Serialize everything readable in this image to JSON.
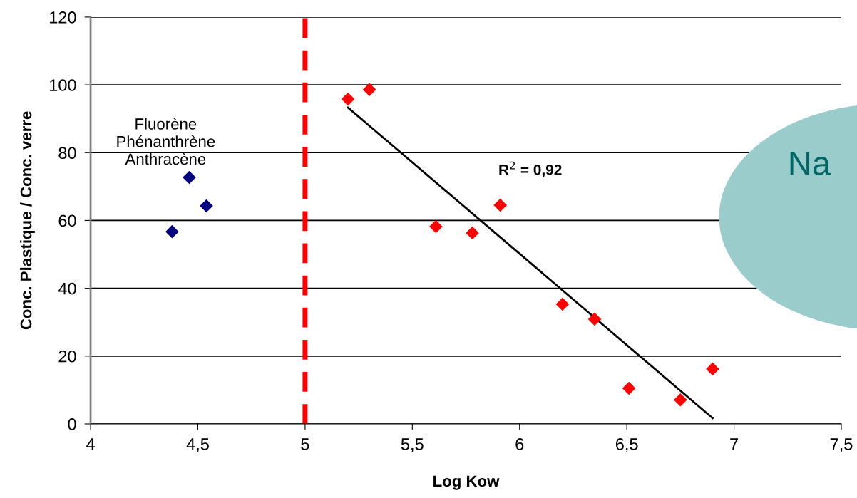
{
  "chart_data": {
    "type": "scatter",
    "xlabel": "Log Kow",
    "ylabel": "Conc. Plastique / Conc. verre",
    "xlim": [
      4,
      7.5
    ],
    "ylim": [
      0,
      120
    ],
    "xticks": [
      4,
      {
        "value": 4.5,
        "label": "4,5"
      },
      5,
      {
        "value": 5.5,
        "label": "5,5"
      },
      6,
      {
        "value": 6.5,
        "label": "6,5"
      },
      7,
      {
        "value": 7.5,
        "label": "7,5"
      }
    ],
    "yticks": [
      0,
      20,
      40,
      60,
      80,
      100,
      120
    ],
    "grid": "y",
    "marker": "diamond",
    "series": [
      {
        "color": "#000080",
        "x": [
          4.38,
          4.46,
          4.54
        ],
        "values": [
          56.7,
          72.7,
          64.3
        ]
      },
      {
        "color": "#ff0000",
        "x": [
          5.2,
          5.3,
          5.61,
          5.78,
          5.91,
          6.2,
          6.35,
          6.51,
          6.75,
          6.9
        ],
        "values": [
          95.8,
          98.6,
          58.2,
          56.3,
          64.5,
          35.3,
          30.9,
          10.5,
          7.1,
          16.2
        ]
      },
      {
        "type": "line",
        "color": "#000000",
        "marker": "none",
        "x": [
          5.2,
          6.9
        ],
        "values": [
          93.3,
          1.7
        ]
      }
    ],
    "ref_lines": [
      {
        "axis": "x",
        "value": 5,
        "color": "#ff0000",
        "line_style": "dashed"
      }
    ],
    "annotations": [
      "Fluorène\nPhénanthrène\nAnthracène",
      "R$^{2}$ = 0,92",
      "Na"
    ]
  }
}
